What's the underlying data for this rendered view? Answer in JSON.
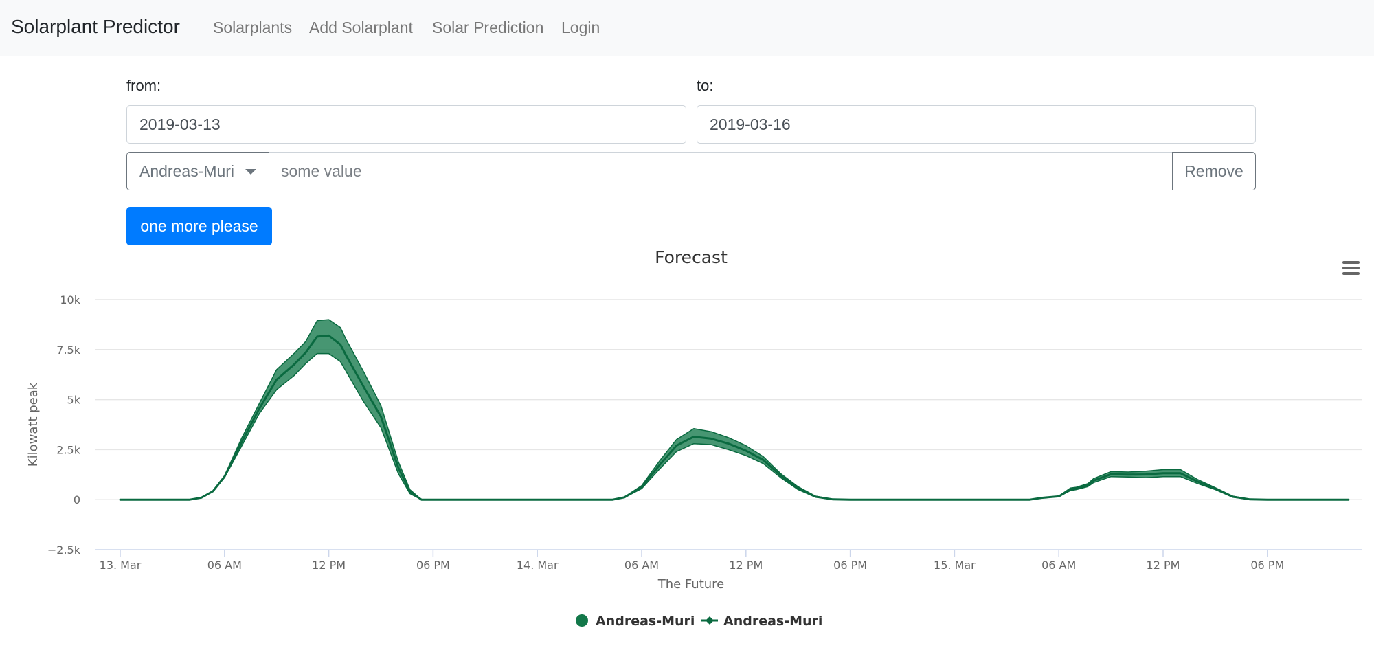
{
  "navbar": {
    "brand": "Solarplant Predictor",
    "links": [
      "Solarplants",
      "Add Solarplant",
      "Solar Prediction",
      "Login"
    ]
  },
  "form": {
    "from_label": "from:",
    "from_value": "2019-03-13",
    "to_label": "to:",
    "to_value": "2019-03-16",
    "plant_select": "Andreas-Muri",
    "value_placeholder": "some value",
    "remove_label": "Remove",
    "add_label": "one more please"
  },
  "chart_data": {
    "type": "area",
    "title": "Forecast",
    "xlabel": "The Future",
    "ylabel": "Kilowatt peak",
    "x_ticks": [
      "13. Mar",
      "06 AM",
      "12 PM",
      "06 PM",
      "14. Mar",
      "06 AM",
      "12 PM",
      "06 PM",
      "15. Mar",
      "06 AM",
      "12 PM",
      "06 PM"
    ],
    "y_ticks": [
      "−2.5k",
      "0",
      "2.5k",
      "5k",
      "7.5k",
      "10k"
    ],
    "ylim": [
      -2500,
      10000
    ],
    "grid": true,
    "legend_position": "bottom-center",
    "colors": {
      "range": "#13784a",
      "line": "#0a6a40"
    },
    "series": [
      {
        "name": "Andreas-Muri",
        "kind": "arearange",
        "x": [
          "2019-03-13 00:00",
          "2019-03-13 04:00",
          "2019-03-13 04:40",
          "2019-03-13 05:20",
          "2019-03-13 06:00",
          "2019-03-13 07:00",
          "2019-03-13 08:00",
          "2019-03-13 09:00",
          "2019-03-13 10:00",
          "2019-03-13 10:40",
          "2019-03-13 11:20",
          "2019-03-13 12:00",
          "2019-03-13 12:40",
          "2019-03-13 13:00",
          "2019-03-13 14:00",
          "2019-03-13 15:00",
          "2019-03-13 16:00",
          "2019-03-13 16:40",
          "2019-03-13 17:20",
          "2019-03-14 03:20",
          "2019-03-14 04:20",
          "2019-03-14 05:00",
          "2019-03-14 06:00",
          "2019-03-14 07:00",
          "2019-03-14 08:00",
          "2019-03-14 09:00",
          "2019-03-14 10:00",
          "2019-03-14 11:00",
          "2019-03-14 12:00",
          "2019-03-14 13:00",
          "2019-03-14 14:00",
          "2019-03-14 15:00",
          "2019-03-14 16:00",
          "2019-03-14 17:00",
          "2019-03-14 18:00",
          "2019-03-15 04:20",
          "2019-03-15 05:00",
          "2019-03-15 06:00",
          "2019-03-15 06:40",
          "2019-03-15 07:00",
          "2019-03-15 07:40",
          "2019-03-15 08:00",
          "2019-03-15 09:00",
          "2019-03-15 10:00",
          "2019-03-15 11:00",
          "2019-03-15 12:00",
          "2019-03-15 13:00",
          "2019-03-15 14:00",
          "2019-03-15 15:00",
          "2019-03-15 16:00",
          "2019-03-15 17:00",
          "2019-03-15 18:00",
          "2019-03-15 22:40"
        ],
        "low": [
          0,
          0,
          100,
          400,
          1100,
          2700,
          4300,
          5500,
          6200,
          6800,
          7300,
          7300,
          6900,
          6400,
          4900,
          3600,
          1300,
          300,
          0,
          0,
          0,
          100,
          550,
          1500,
          2400,
          2800,
          2750,
          2500,
          2200,
          1800,
          1100,
          500,
          120,
          10,
          0,
          0,
          80,
          150,
          450,
          500,
          650,
          850,
          1150,
          1130,
          1100,
          1150,
          1150,
          800,
          500,
          120,
          10,
          0,
          0
        ],
        "high": [
          0,
          0,
          100,
          450,
          1200,
          3100,
          4800,
          6500,
          7300,
          7900,
          8950,
          9000,
          8600,
          8000,
          6400,
          4700,
          1900,
          500,
          0,
          0,
          0,
          130,
          700,
          1900,
          3000,
          3550,
          3400,
          3100,
          2700,
          2150,
          1300,
          650,
          180,
          20,
          0,
          0,
          100,
          180,
          580,
          620,
          800,
          1050,
          1400,
          1380,
          1420,
          1500,
          1500,
          1000,
          600,
          180,
          20,
          0,
          0
        ]
      },
      {
        "name": "Andreas-Muri",
        "kind": "line",
        "x": [
          "2019-03-13 00:00",
          "2019-03-13 04:00",
          "2019-03-13 04:40",
          "2019-03-13 05:20",
          "2019-03-13 06:00",
          "2019-03-13 07:00",
          "2019-03-13 08:00",
          "2019-03-13 09:00",
          "2019-03-13 10:00",
          "2019-03-13 10:40",
          "2019-03-13 11:20",
          "2019-03-13 12:00",
          "2019-03-13 12:40",
          "2019-03-13 13:00",
          "2019-03-13 14:00",
          "2019-03-13 15:00",
          "2019-03-13 16:00",
          "2019-03-13 16:40",
          "2019-03-13 17:20",
          "2019-03-14 03:20",
          "2019-03-14 04:20",
          "2019-03-14 05:00",
          "2019-03-14 06:00",
          "2019-03-14 07:00",
          "2019-03-14 08:00",
          "2019-03-14 09:00",
          "2019-03-14 10:00",
          "2019-03-14 11:00",
          "2019-03-14 12:00",
          "2019-03-14 13:00",
          "2019-03-14 14:00",
          "2019-03-14 15:00",
          "2019-03-14 16:00",
          "2019-03-14 17:00",
          "2019-03-14 18:00",
          "2019-03-15 04:20",
          "2019-03-15 05:00",
          "2019-03-15 06:00",
          "2019-03-15 06:40",
          "2019-03-15 07:00",
          "2019-03-15 07:40",
          "2019-03-15 08:00",
          "2019-03-15 09:00",
          "2019-03-15 10:00",
          "2019-03-15 11:00",
          "2019-03-15 12:00",
          "2019-03-15 13:00",
          "2019-03-15 14:00",
          "2019-03-15 15:00",
          "2019-03-15 16:00",
          "2019-03-15 17:00",
          "2019-03-15 18:00",
          "2019-03-15 22:40"
        ],
        "values": [
          0,
          0,
          100,
          420,
          1150,
          2900,
          4550,
          6000,
          6750,
          7350,
          8150,
          8200,
          7750,
          7200,
          5650,
          4150,
          1600,
          400,
          0,
          0,
          0,
          115,
          620,
          1700,
          2700,
          3150,
          3050,
          2800,
          2450,
          1980,
          1200,
          570,
          150,
          15,
          0,
          0,
          90,
          165,
          510,
          560,
          720,
          950,
          1270,
          1250,
          1260,
          1320,
          1320,
          900,
          550,
          150,
          15,
          0,
          0
        ]
      }
    ]
  }
}
